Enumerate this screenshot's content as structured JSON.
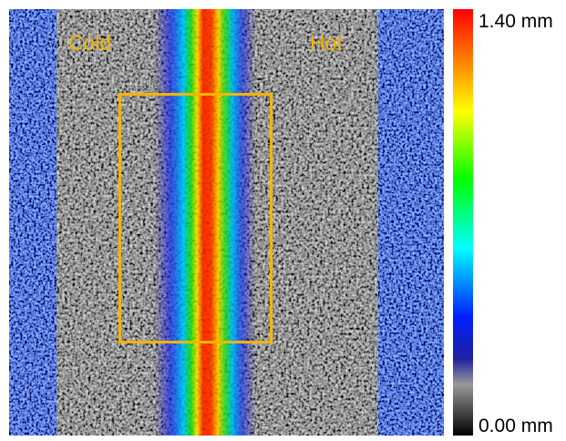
{
  "image": {
    "labels": [
      "Cold",
      "Hot"
    ]
  },
  "colorbar": {
    "max_label": "1.40 mm",
    "min_label": "0.00 mm"
  }
}
